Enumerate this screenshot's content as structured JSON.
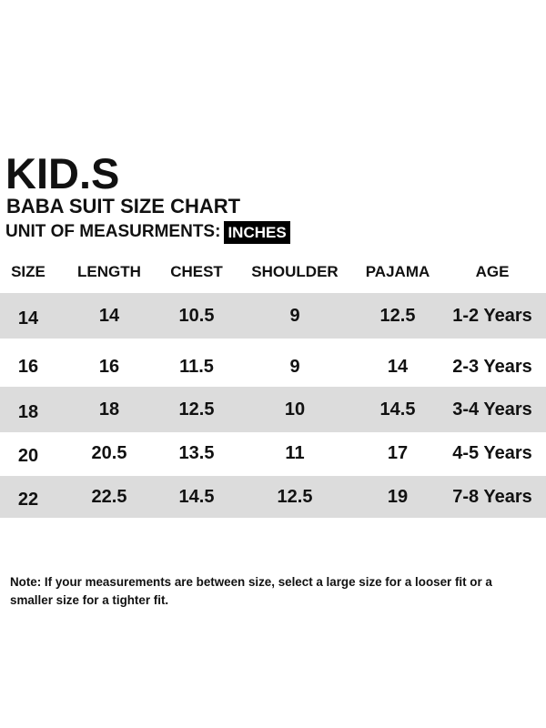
{
  "header": {
    "brand": "KID.S",
    "subtitle": "BABA SUIT SIZE CHART",
    "unit_label": "UNIT OF MEASURMENTS:",
    "unit_value": "INCHES"
  },
  "table": {
    "columns": [
      "SIZE",
      "LENGTH",
      "CHEST",
      "SHOULDER",
      "PAJAMA",
      "AGE"
    ],
    "rows": [
      [
        "14",
        "14",
        "10.5",
        "9",
        "12.5",
        "1-2 Years"
      ],
      [
        "16",
        "16",
        "11.5",
        "9",
        "14",
        "2-3 Years"
      ],
      [
        "18",
        "18",
        "12.5",
        "10",
        "14.5",
        "3-4 Years"
      ],
      [
        "20",
        "20.5",
        "13.5",
        "11",
        "17",
        "4-5 Years"
      ],
      [
        "22",
        "22.5",
        "14.5",
        "12.5",
        "19",
        "7-8 Years"
      ]
    ]
  },
  "note": "Note: If your measurements are between size, select a large size for a looser fit or a smaller size for a tighter fit.",
  "colors": {
    "shaded_row": "#dcdcdc",
    "text": "#111111",
    "badge_bg": "#000000",
    "badge_text": "#ffffff"
  }
}
